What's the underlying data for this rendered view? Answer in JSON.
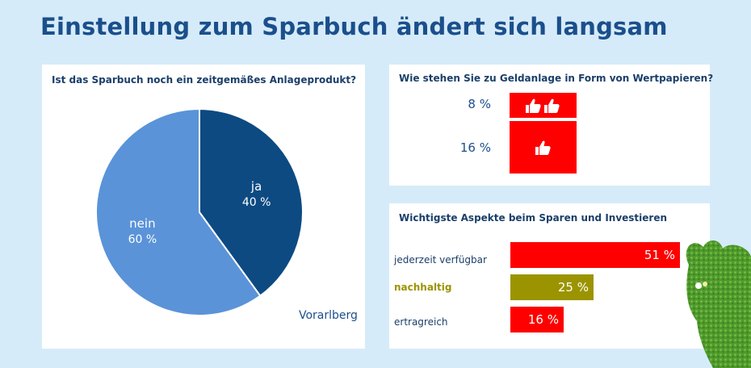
{
  "title": "Einstellung zum Sparbuch ändert sich langsam",
  "colors": {
    "background": "#d6ebf9",
    "title": "#1b4f8c",
    "pie_ja": "#0d4a82",
    "pie_nein": "#5a93d8",
    "red": "#ff0000",
    "olive": "#9b9400"
  },
  "chart_data": [
    {
      "type": "pie",
      "title": "Ist das Sparbuch noch ein zeitgemäßes Anlageprodukt?",
      "slices": [
        {
          "name": "ja",
          "value": 40,
          "label": "40 %"
        },
        {
          "name": "nein",
          "value": 60,
          "label": "60 %"
        }
      ],
      "annotation": "Vorarlberg"
    },
    {
      "type": "bar",
      "title": "Wie stehen Sie zu Geldanlage in Form von Wertpapieren?",
      "categories": [
        "thumbs-up-double",
        "thumbs-up-single"
      ],
      "values": [
        8,
        16
      ],
      "labels": [
        "8 %",
        "16 %"
      ],
      "icons": [
        "thumbs-up-icon",
        "thumbs-up-icon"
      ]
    },
    {
      "type": "bar",
      "title": "Wichtigste Aspekte beim Sparen und Investieren",
      "categories": [
        "jederzeit verfügbar",
        "nachhaltig",
        "ertragreich"
      ],
      "values": [
        51,
        25,
        16
      ],
      "labels": [
        "51 %",
        "25 %",
        "16 %"
      ],
      "orientation": "horizontal"
    }
  ]
}
